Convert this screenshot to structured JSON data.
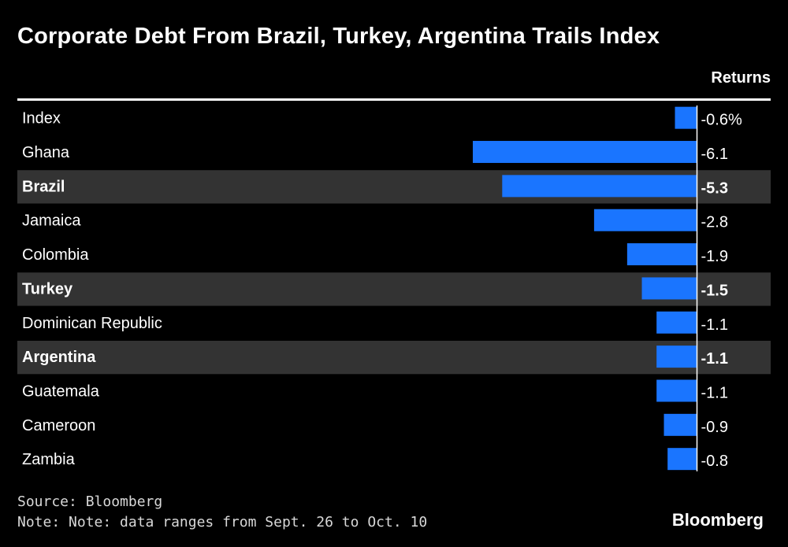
{
  "title": "Corporate Debt From Brazil, Turkey, Argentina Trails Index",
  "column_header": "Returns",
  "source": "Source: Bloomberg",
  "note": "Note: Note: data ranges from Sept. 26 to Oct. 10",
  "brand": "Bloomberg",
  "colors": {
    "bar": "#1a75ff",
    "highlight_row": "#333333",
    "background": "#000000",
    "text": "#ffffff"
  },
  "chart_data": {
    "type": "bar",
    "orientation": "horizontal",
    "title": "Corporate Debt From Brazil, Turkey, Argentina Trails Index",
    "xlabel": "Returns",
    "ylabel": "",
    "unit": "%",
    "xlim": [
      -6.1,
      0
    ],
    "categories": [
      "Index",
      "Ghana",
      "Brazil",
      "Jamaica",
      "Colombia",
      "Turkey",
      "Dominican Republic",
      "Argentina",
      "Guatemala",
      "Cameroon",
      "Zambia"
    ],
    "values": [
      -0.6,
      -6.1,
      -5.3,
      -2.8,
      -1.9,
      -1.5,
      -1.1,
      -1.1,
      -1.1,
      -0.9,
      -0.8
    ],
    "value_labels": [
      "-0.6%",
      "-6.1",
      "-5.3",
      "-2.8",
      "-1.9",
      "-1.5",
      "-1.1",
      "-1.1",
      "-1.1",
      "-0.9",
      "-0.8"
    ],
    "highlighted": [
      false,
      false,
      true,
      false,
      false,
      true,
      false,
      true,
      false,
      false,
      false
    ]
  }
}
